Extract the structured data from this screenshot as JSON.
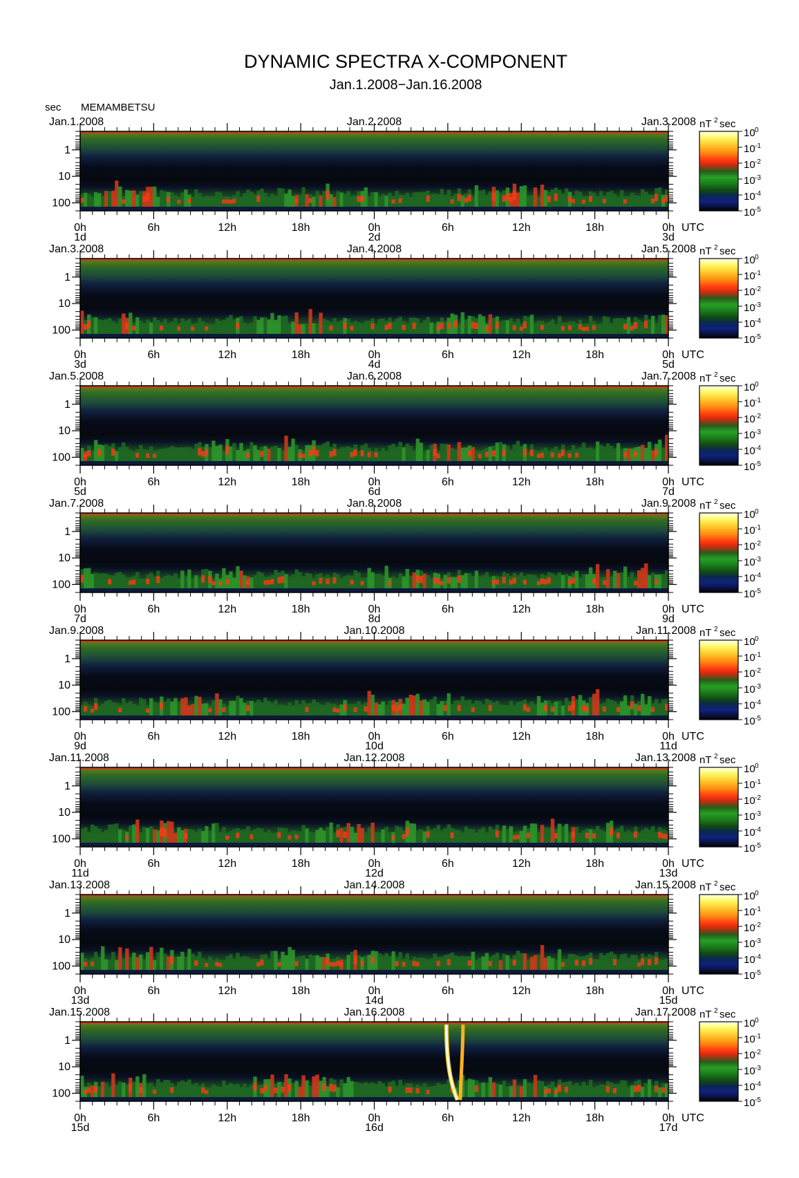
{
  "title": "DYNAMIC SPECTRA X-COMPONENT",
  "subtitle": "Jan.1.2008−Jan.16.2008",
  "station": "MEMAMBETSU",
  "y_unit": "sec",
  "colorbar_unit": "nT",
  "colorbar_unit_sup": "2",
  "colorbar_unit_tail": "sec",
  "x_unit": "UTC",
  "chart_data": {
    "type": "heatmap",
    "title": "DYNAMIC SPECTRA X-COMPONENT",
    "subtitle": "Jan.1.2008−Jan.16.2008",
    "y_axis": {
      "unit": "sec",
      "ticks": [
        "1",
        "10",
        "100"
      ],
      "scale": "log"
    },
    "x_axis": {
      "ticks": [
        "0h",
        "6h",
        "12h",
        "18h",
        "0h",
        "6h",
        "12h",
        "18h",
        "0h"
      ],
      "unit": "UTC"
    },
    "colorbar": {
      "unit": "nT²sec",
      "ticks": [
        "10",
        "10",
        "10",
        "10",
        "10",
        "10"
      ],
      "exponents": [
        "0",
        "-1",
        "-2",
        "-3",
        "-4",
        "-5"
      ],
      "scale": "log",
      "colors": [
        "#ffffff",
        "#ffff66",
        "#ffcc22",
        "#ff7700",
        "#ee1100",
        "#ff4422",
        "#cc3311",
        "#2a8a1a",
        "#22aa22",
        "#1a6a1a",
        "#112266",
        "#0a1030",
        "#050510"
      ]
    },
    "panels": [
      {
        "left_date": "Jan.1.2008",
        "mid_date": "Jan.2.2008",
        "right_date": "Jan.3.2008",
        "day_start": "1d",
        "day_mid": "2d",
        "day_end": "3d"
      },
      {
        "left_date": "Jan.3.2008",
        "mid_date": "Jan.4.2008",
        "right_date": "Jan.5.2008",
        "day_start": "3d",
        "day_mid": "4d",
        "day_end": "5d"
      },
      {
        "left_date": "Jan.5.2008",
        "mid_date": "Jan.6.2008",
        "right_date": "Jan.7.2008",
        "day_start": "5d",
        "day_mid": "6d",
        "day_end": "7d"
      },
      {
        "left_date": "Jan.7.2008",
        "mid_date": "Jan.8.2008",
        "right_date": "Jan.9.2008",
        "day_start": "7d",
        "day_mid": "8d",
        "day_end": "9d"
      },
      {
        "left_date": "Jan.9.2008",
        "mid_date": "Jan.10.2008",
        "right_date": "Jan.11.2008",
        "day_start": "9d",
        "day_mid": "10d",
        "day_end": "11d"
      },
      {
        "left_date": "Jan.11.2008",
        "mid_date": "Jan.12.2008",
        "right_date": "Jan.13.2008",
        "day_start": "11d",
        "day_mid": "12d",
        "day_end": "13d"
      },
      {
        "left_date": "Jan.13.2008",
        "mid_date": "Jan.14.2008",
        "right_date": "Jan.15.2008",
        "day_start": "13d",
        "day_mid": "14d",
        "day_end": "15d"
      },
      {
        "left_date": "Jan.15.2008",
        "mid_date": "Jan.16.2008",
        "right_date": "Jan.17.2008",
        "day_start": "15d",
        "day_mid": "16d",
        "day_end": "17d"
      }
    ]
  }
}
